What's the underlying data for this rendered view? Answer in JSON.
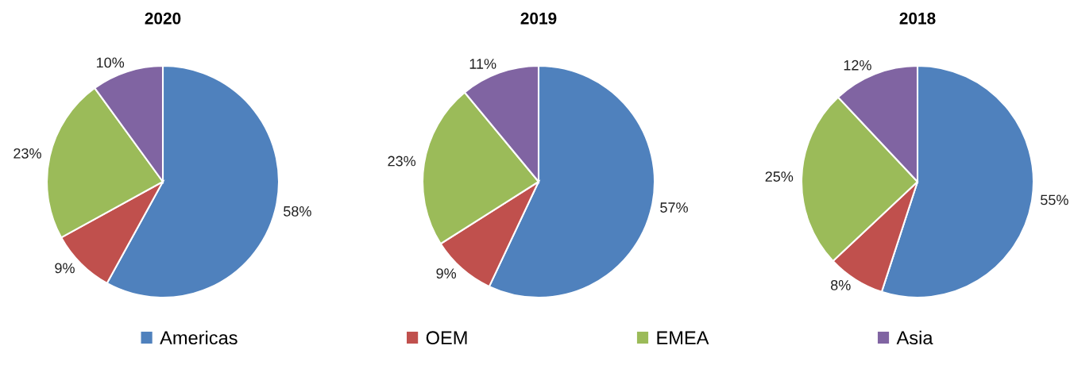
{
  "chart_data": [
    {
      "type": "pie",
      "title": "2020",
      "categories": [
        "Americas",
        "OEM",
        "EMEA",
        "Asia"
      ],
      "values": [
        58,
        9,
        23,
        10
      ],
      "colors": [
        "#4f81bd",
        "#c0504d",
        "#9bbb59",
        "#8064a2"
      ],
      "value_labels": [
        "58%",
        "9%",
        "23%",
        "10%"
      ],
      "legend": "bottom"
    },
    {
      "type": "pie",
      "title": "2019",
      "values": [
        57,
        9,
        23,
        11
      ],
      "colors": [
        "#4f81bd",
        "#c0504d",
        "#9bbb59",
        "#8064a2"
      ],
      "value_labels": [
        "57%",
        "9%",
        "23%",
        "11%"
      ]
    },
    {
      "type": "pie",
      "title": "2018",
      "values": [
        55,
        8,
        25,
        12
      ],
      "colors": [
        "#4f81bd",
        "#c0504d",
        "#9bbb59",
        "#8064a2"
      ],
      "value_labels": [
        "55%",
        "8%",
        "25%",
        "12%"
      ]
    }
  ]
}
